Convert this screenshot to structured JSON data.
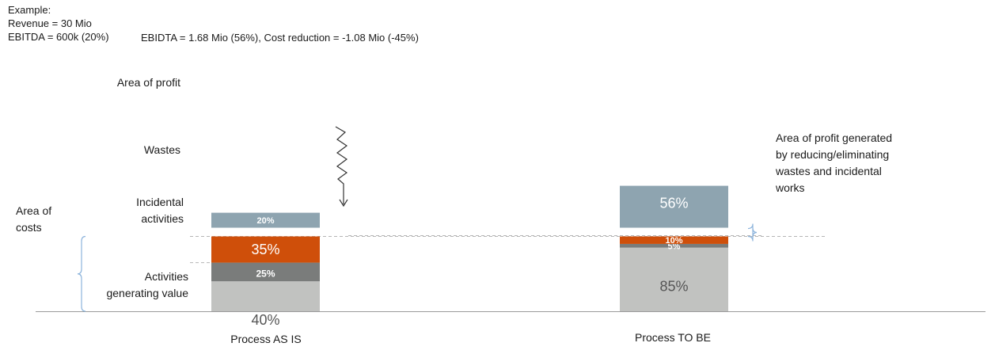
{
  "header": {
    "example": "Example:",
    "revenue": "Revenue = 30 Mio",
    "ebitda_asis": "EBITDA = 600k (20%)",
    "ebitda_tobe": "EBIDTA = 1.68 Mio (56%), Cost reduction =  -1.08 Mio (-45%)"
  },
  "categories": {
    "profit": "Area of profit",
    "wastes": "Wastes",
    "incidental": [
      "Incidental",
      "activities"
    ],
    "value": [
      "Activities",
      "generating value"
    ]
  },
  "area_of_costs": [
    "Area of",
    "costs"
  ],
  "profit_generated": [
    "Area of profit generated",
    "by reducing/eliminating",
    "wastes and incidental",
    "works"
  ],
  "colors": {
    "profit": "#8ea4b0",
    "wastes": "#cf4f0a",
    "incidental": "#7a7c7b",
    "value": "#c1c2c0",
    "bracket": "#8db4dc",
    "baseline": "#9a9a9a"
  },
  "chart_data": {
    "type": "bar",
    "stacked": true,
    "categories": [
      "Process AS IS",
      "Process TO BE"
    ],
    "series": [
      {
        "name": "Activities generating value",
        "values": [
          40,
          85
        ]
      },
      {
        "name": "Incidental activities",
        "values": [
          25,
          5
        ]
      },
      {
        "name": "Wastes",
        "values": [
          35,
          10
        ]
      },
      {
        "name": "Area of profit",
        "values": [
          20,
          56
        ]
      }
    ],
    "labels": {
      "Process AS IS": [
        "40%",
        "25%",
        "35%",
        "20%"
      ],
      "Process TO BE": [
        "85%",
        "5%",
        "10%",
        "56%"
      ]
    },
    "xlabel": "",
    "ylabel": ""
  }
}
